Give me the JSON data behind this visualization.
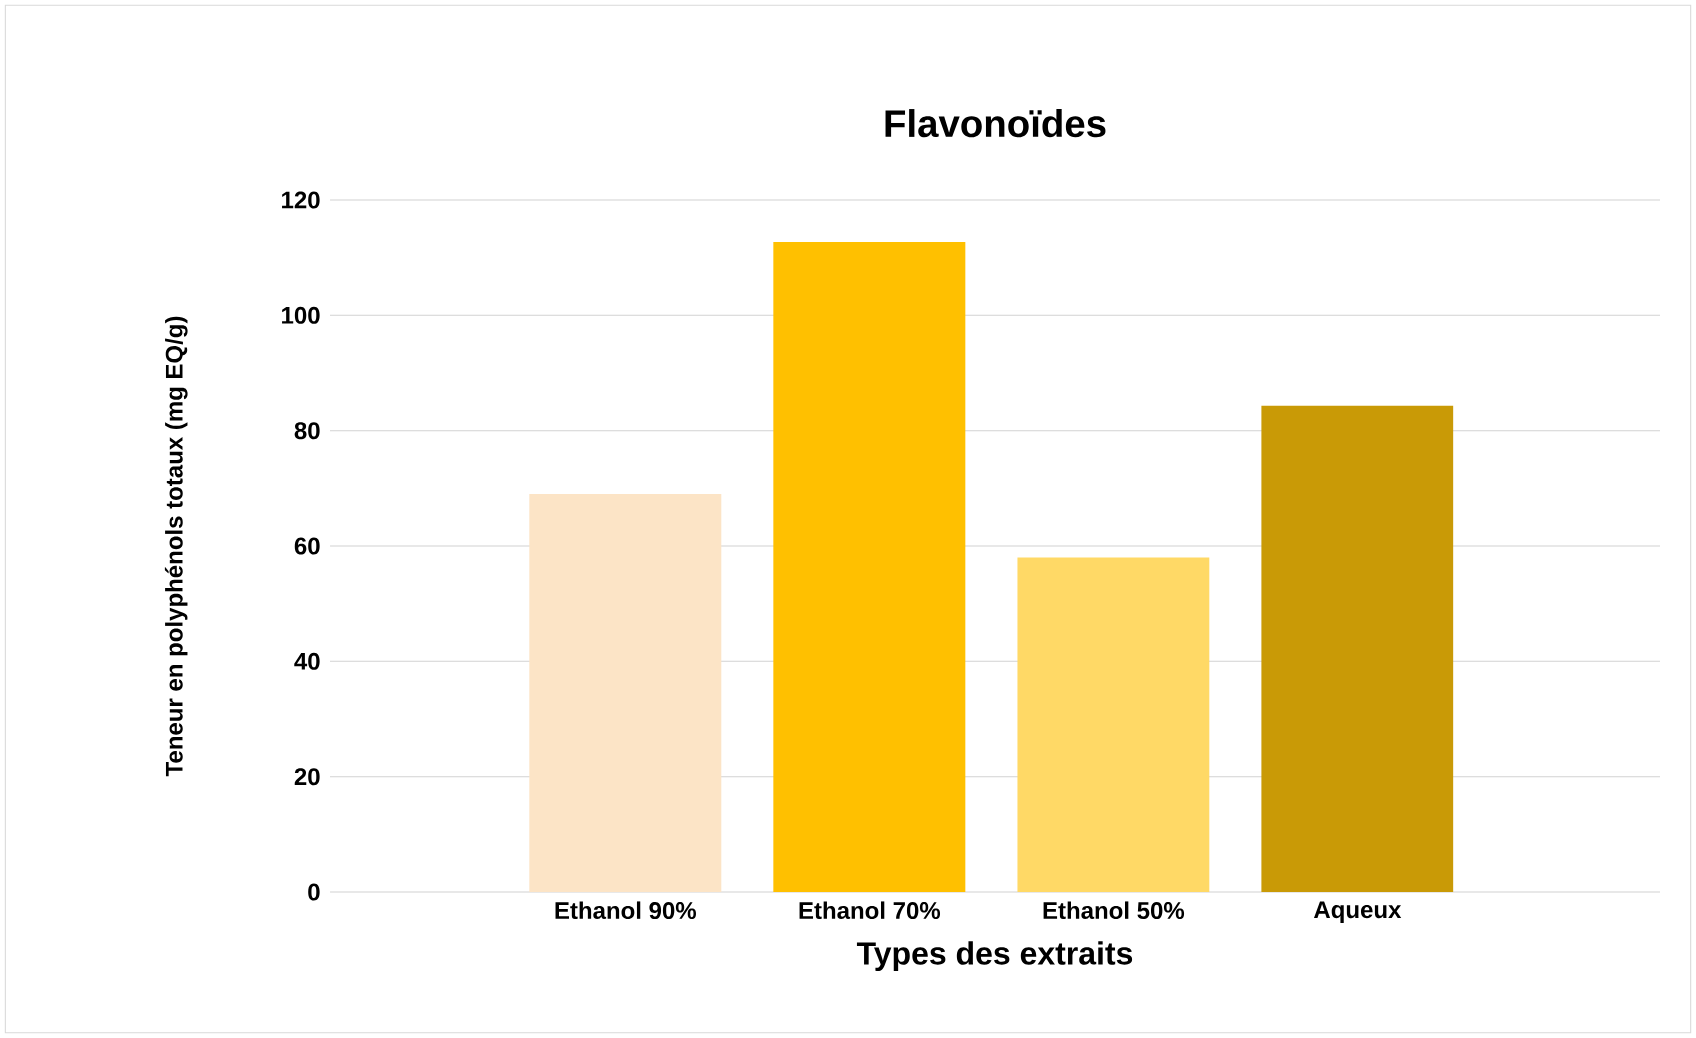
{
  "chart_data": {
    "type": "bar",
    "title": "Flavonoïdes",
    "xlabel": "Types des extraits",
    "ylabel": "Teneur en polyphénols totaux (mg EQ/g)",
    "categories": [
      "Ethanol 90%",
      "Ethanol 70%",
      "Ethanol 50%",
      "Aqueux"
    ],
    "values": [
      69,
      112.7,
      58,
      84.3
    ],
    "colors": [
      "#fce4c6",
      "#ffc000",
      "#ffd966",
      "#c99a06"
    ],
    "ylim": [
      0,
      120
    ],
    "yticks": [
      0,
      20,
      40,
      60,
      80,
      100,
      120
    ],
    "grid": "y"
  }
}
